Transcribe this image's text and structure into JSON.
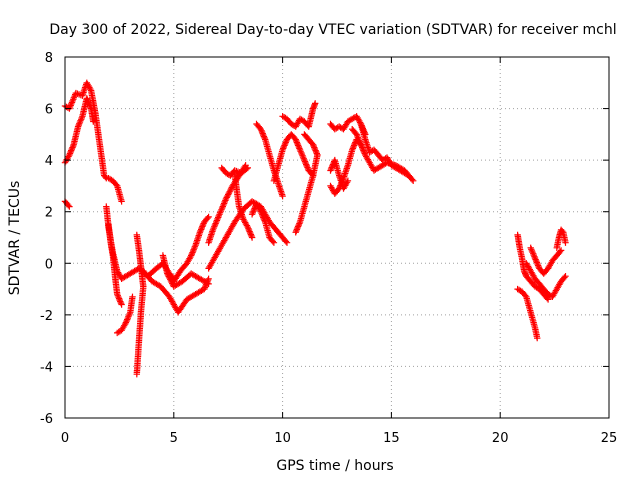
{
  "chart_data": {
    "type": "scatter",
    "title": "Day 300 of 2022, Sidereal Day-to-day VTEC variation (SDTVAR) for receiver mchl",
    "xlabel": "GPS time / hours",
    "ylabel": "SDTVAR / TECUs",
    "xlim": [
      0,
      25
    ],
    "ylim": [
      -6,
      8
    ],
    "xticks": [
      0,
      5,
      10,
      15,
      20,
      25
    ],
    "yticks": [
      -6,
      -4,
      -2,
      0,
      2,
      4,
      6,
      8
    ],
    "grid": true,
    "marker": "+",
    "marker_color": "#ff0000",
    "series": [
      {
        "segments": [
          [
            [
              0.0,
              6.1
            ],
            [
              0.2,
              6.0
            ],
            [
              0.5,
              6.6
            ],
            [
              0.8,
              6.5
            ],
            [
              1.0,
              7.0
            ],
            [
              1.2,
              6.7
            ],
            [
              1.4,
              5.8
            ],
            [
              1.5,
              5.2
            ],
            [
              1.6,
              4.6
            ],
            [
              1.7,
              4.0
            ],
            [
              1.8,
              3.4
            ],
            [
              1.9,
              3.3
            ]
          ],
          [
            [
              0.0,
              3.9
            ],
            [
              0.2,
              4.2
            ],
            [
              0.4,
              4.6
            ],
            [
              0.6,
              5.3
            ],
            [
              0.8,
              5.7
            ],
            [
              1.0,
              6.4
            ],
            [
              1.2,
              6.0
            ],
            [
              1.3,
              5.5
            ]
          ],
          [
            [
              0.0,
              2.4
            ],
            [
              0.1,
              2.3
            ],
            [
              0.2,
              2.2
            ]
          ],
          [
            [
              2.0,
              3.3
            ],
            [
              2.2,
              3.2
            ],
            [
              2.4,
              3.0
            ],
            [
              2.6,
              2.4
            ]
          ],
          [
            [
              2.0,
              1.5
            ],
            [
              2.1,
              0.8
            ],
            [
              2.2,
              0.3
            ],
            [
              2.3,
              -0.5
            ],
            [
              2.4,
              -1.2
            ],
            [
              2.6,
              -1.6
            ]
          ],
          [
            [
              1.9,
              2.2
            ],
            [
              2.0,
              1.4
            ],
            [
              2.2,
              0.4
            ],
            [
              2.4,
              -0.3
            ],
            [
              2.6,
              -0.6
            ],
            [
              3.0,
              -0.4
            ],
            [
              3.4,
              -0.2
            ],
            [
              3.8,
              -0.5
            ],
            [
              4.2,
              -0.2
            ],
            [
              4.5,
              0.0
            ],
            [
              4.8,
              -0.4
            ],
            [
              5.0,
              -0.6
            ]
          ],
          [
            [
              2.4,
              -2.7
            ],
            [
              2.6,
              -2.6
            ],
            [
              2.8,
              -2.3
            ],
            [
              3.0,
              -1.9
            ],
            [
              3.1,
              -1.3
            ]
          ],
          [
            [
              3.3,
              1.1
            ],
            [
              3.4,
              0.5
            ],
            [
              3.5,
              -0.2
            ],
            [
              3.6,
              -0.9
            ],
            [
              3.5,
              -1.8
            ],
            [
              3.4,
              -3.0
            ],
            [
              3.3,
              -4.3
            ]
          ],
          [
            [
              3.6,
              -0.3
            ],
            [
              4.0,
              -0.7
            ],
            [
              4.4,
              -0.9
            ],
            [
              4.8,
              -1.3
            ],
            [
              5.2,
              -1.9
            ],
            [
              5.6,
              -1.4
            ],
            [
              6.0,
              -1.2
            ],
            [
              6.4,
              -1.0
            ],
            [
              6.6,
              -0.6
            ]
          ],
          [
            [
              4.5,
              0.3
            ],
            [
              4.7,
              -0.4
            ],
            [
              5.0,
              -0.9
            ],
            [
              5.4,
              -0.7
            ],
            [
              5.8,
              -0.4
            ],
            [
              6.2,
              -0.6
            ],
            [
              6.6,
              -0.8
            ]
          ],
          [
            [
              5.0,
              -0.7
            ],
            [
              5.3,
              -0.3
            ],
            [
              5.6,
              0.0
            ],
            [
              5.8,
              0.3
            ],
            [
              6.0,
              0.7
            ],
            [
              6.2,
              1.2
            ],
            [
              6.4,
              1.6
            ],
            [
              6.6,
              1.8
            ]
          ],
          [
            [
              6.6,
              0.8
            ],
            [
              6.8,
              1.3
            ],
            [
              7.1,
              1.9
            ],
            [
              7.4,
              2.5
            ],
            [
              7.7,
              3.0
            ],
            [
              8.0,
              3.4
            ],
            [
              8.3,
              3.8
            ]
          ],
          [
            [
              6.6,
              -0.2
            ],
            [
              7.0,
              0.4
            ],
            [
              7.4,
              1.0
            ],
            [
              7.8,
              1.6
            ],
            [
              8.2,
              2.1
            ],
            [
              8.6,
              2.4
            ],
            [
              9.0,
              2.2
            ],
            [
              9.4,
              1.6
            ],
            [
              9.8,
              1.2
            ],
            [
              10.2,
              0.8
            ]
          ],
          [
            [
              7.2,
              3.7
            ],
            [
              7.4,
              3.5
            ],
            [
              7.6,
              3.4
            ],
            [
              7.8,
              3.6
            ],
            [
              8.1,
              3.5
            ],
            [
              8.4,
              3.7
            ]
          ],
          [
            [
              7.8,
              3.5
            ],
            [
              7.9,
              2.8
            ],
            [
              8.0,
              2.2
            ],
            [
              8.2,
              1.7
            ],
            [
              8.4,
              1.4
            ],
            [
              8.6,
              1.0
            ]
          ],
          [
            [
              8.6,
              1.9
            ],
            [
              8.8,
              2.3
            ],
            [
              9.0,
              2.0
            ],
            [
              9.2,
              1.6
            ],
            [
              9.4,
              1.0
            ],
            [
              9.6,
              0.8
            ]
          ],
          [
            [
              8.8,
              5.4
            ],
            [
              9.0,
              5.2
            ],
            [
              9.2,
              4.8
            ],
            [
              9.4,
              4.2
            ],
            [
              9.6,
              3.6
            ],
            [
              9.8,
              3.1
            ],
            [
              10.0,
              2.6
            ]
          ],
          [
            [
              9.6,
              3.2
            ],
            [
              9.8,
              3.8
            ],
            [
              10.0,
              4.4
            ],
            [
              10.2,
              4.8
            ],
            [
              10.4,
              5.0
            ],
            [
              10.6,
              4.8
            ],
            [
              10.8,
              4.4
            ],
            [
              11.0,
              4.0
            ],
            [
              11.2,
              3.6
            ],
            [
              11.4,
              3.4
            ]
          ],
          [
            [
              10.6,
              1.2
            ],
            [
              10.8,
              1.6
            ],
            [
              11.0,
              2.2
            ],
            [
              11.2,
              2.8
            ],
            [
              11.4,
              3.4
            ],
            [
              11.6,
              4.2
            ]
          ],
          [
            [
              10.0,
              5.7
            ],
            [
              10.2,
              5.6
            ],
            [
              10.4,
              5.4
            ],
            [
              10.6,
              5.3
            ],
            [
              10.8,
              5.6
            ],
            [
              11.0,
              5.5
            ],
            [
              11.2,
              5.3
            ],
            [
              11.4,
              6.0
            ],
            [
              11.5,
              6.2
            ]
          ],
          [
            [
              11.0,
              5.0
            ],
            [
              11.2,
              4.8
            ],
            [
              11.4,
              4.6
            ],
            [
              11.6,
              4.2
            ]
          ],
          [
            [
              12.2,
              5.4
            ],
            [
              12.4,
              5.2
            ],
            [
              12.6,
              5.3
            ],
            [
              12.8,
              5.2
            ],
            [
              13.0,
              5.5
            ],
            [
              13.2,
              5.6
            ],
            [
              13.4,
              5.7
            ],
            [
              13.6,
              5.4
            ],
            [
              13.8,
              5.0
            ]
          ],
          [
            [
              12.2,
              3.0
            ],
            [
              12.4,
              2.7
            ],
            [
              12.6,
              2.9
            ],
            [
              12.8,
              3.3
            ],
            [
              13.0,
              3.8
            ],
            [
              13.2,
              4.4
            ],
            [
              13.4,
              4.8
            ],
            [
              13.6,
              4.6
            ]
          ],
          [
            [
              12.2,
              3.6
            ],
            [
              12.4,
              4.0
            ],
            [
              12.6,
              3.4
            ],
            [
              12.8,
              2.9
            ],
            [
              13.0,
              3.2
            ]
          ],
          [
            [
              13.2,
              5.2
            ],
            [
              13.4,
              5.0
            ],
            [
              13.6,
              4.6
            ],
            [
              13.8,
              4.2
            ],
            [
              14.0,
              3.9
            ],
            [
              14.2,
              3.6
            ],
            [
              14.4,
              3.7
            ],
            [
              14.8,
              3.9
            ],
            [
              15.2,
              3.8
            ],
            [
              15.6,
              3.6
            ],
            [
              16.0,
              3.2
            ]
          ],
          [
            [
              13.6,
              5.4
            ],
            [
              13.8,
              4.8
            ],
            [
              14.0,
              4.3
            ],
            [
              14.2,
              4.4
            ],
            [
              14.4,
              4.2
            ],
            [
              14.6,
              4.0
            ],
            [
              14.8,
              4.1
            ],
            [
              15.0,
              3.8
            ],
            [
              15.4,
              3.6
            ],
            [
              15.8,
              3.4
            ]
          ],
          [
            [
              20.8,
              1.1
            ],
            [
              20.9,
              0.6
            ],
            [
              21.0,
              0.2
            ],
            [
              21.1,
              -0.3
            ],
            [
              21.2,
              -0.5
            ],
            [
              21.4,
              -0.7
            ],
            [
              21.6,
              -0.9
            ],
            [
              21.8,
              -1.0
            ],
            [
              22.0,
              -1.2
            ],
            [
              22.2,
              -1.4
            ]
          ],
          [
            [
              20.8,
              -1.0
            ],
            [
              21.0,
              -1.1
            ],
            [
              21.2,
              -1.3
            ],
            [
              21.4,
              -1.9
            ],
            [
              21.6,
              -2.5
            ],
            [
              21.7,
              -2.9
            ]
          ],
          [
            [
              21.4,
              0.6
            ],
            [
              21.6,
              0.2
            ],
            [
              21.8,
              -0.2
            ],
            [
              22.0,
              -0.4
            ],
            [
              22.2,
              -0.2
            ],
            [
              22.4,
              0.1
            ],
            [
              22.6,
              0.3
            ],
            [
              22.8,
              0.5
            ]
          ],
          [
            [
              21.2,
              0.0
            ],
            [
              21.4,
              -0.3
            ],
            [
              21.6,
              -0.6
            ],
            [
              21.8,
              -0.8
            ],
            [
              22.0,
              -1.0
            ],
            [
              22.2,
              -1.2
            ],
            [
              22.4,
              -1.3
            ],
            [
              22.6,
              -1.0
            ],
            [
              22.8,
              -0.7
            ],
            [
              23.0,
              -0.5
            ]
          ],
          [
            [
              22.6,
              0.6
            ],
            [
              22.7,
              1.0
            ],
            [
              22.8,
              1.3
            ],
            [
              22.9,
              1.2
            ],
            [
              23.0,
              0.8
            ]
          ]
        ]
      }
    ]
  }
}
